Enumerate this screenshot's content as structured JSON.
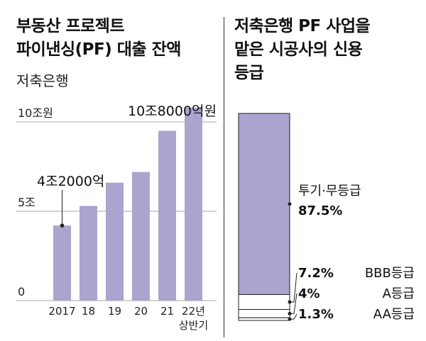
{
  "chart_data": [
    {
      "type": "bar",
      "title": "부동산 프로젝트 파이낸싱(PF) 대출 잔액",
      "subtitle": "저축은행",
      "categories": [
        "2017",
        "18",
        "19",
        "20",
        "21",
        "22년"
      ],
      "category_sub": [
        "",
        "",
        "",
        "",
        "",
        "상반기"
      ],
      "values": [
        4.2,
        5.3,
        6.6,
        7.2,
        9.5,
        10.8
      ],
      "y_ticks": [
        {
          "value": 0,
          "label": "0"
        },
        {
          "value": 5,
          "label": "5조"
        },
        {
          "value": 10,
          "label": "10조원"
        }
      ],
      "ylim": [
        0,
        10.8
      ],
      "grid": true,
      "bar_color": "#ABA4CE",
      "annotations": [
        {
          "category_index": 0,
          "label": "4조2000억"
        },
        {
          "category_index": 5,
          "label": "10조8000억원"
        }
      ]
    },
    {
      "type": "bar",
      "stacked": true,
      "title": "저축은행 PF 사업을 맡은 시공사의 신용등급",
      "series": [
        {
          "name": "투기·무등급",
          "value": 87.5,
          "label": "87.5%",
          "color": "#ABA4CE"
        },
        {
          "name": "BBB등급",
          "value": 7.2,
          "label": "7.2%",
          "color": "#ffffff"
        },
        {
          "name": "A등급",
          "value": 4,
          "label": "4%",
          "color": "#ffffff"
        },
        {
          "name": "AA등급",
          "value": 1.3,
          "label": "1.3%",
          "color": "#ffffff"
        }
      ]
    }
  ]
}
